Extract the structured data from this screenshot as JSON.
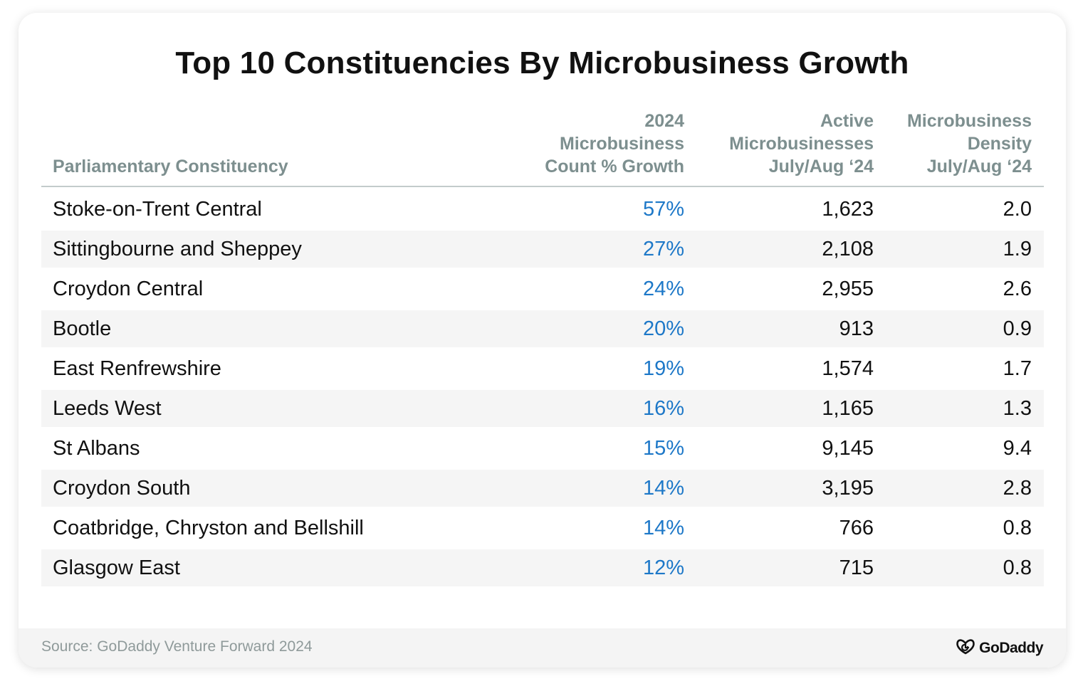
{
  "chart_data": {
    "type": "table",
    "title": "Top 10 Constituencies By Microbusiness Growth",
    "columns": [
      "Parliamentary Constituency",
      "2024 Microbusiness Count % Growth",
      "Active Microbusinesses July/Aug ‘24",
      "Microbusiness Density July/Aug ‘24"
    ],
    "header_lines": {
      "constituency": [
        "Parliamentary Constituency"
      ],
      "growth": [
        "2024",
        "Microbusiness",
        "Count % Growth"
      ],
      "active": [
        "Active",
        "Microbusinesses",
        "July/Aug ‘24"
      ],
      "density": [
        "Microbusiness",
        "Density",
        "July/Aug ‘24"
      ]
    },
    "rows": [
      {
        "constituency": "Stoke-on-Trent Central",
        "growth": "57%",
        "active": "1,623",
        "density": "2.0"
      },
      {
        "constituency": "Sittingbourne and Sheppey",
        "growth": "27%",
        "active": "2,108",
        "density": "1.9"
      },
      {
        "constituency": "Croydon Central",
        "growth": "24%",
        "active": "2,955",
        "density": "2.6"
      },
      {
        "constituency": "Bootle",
        "growth": "20%",
        "active": "913",
        "density": "0.9"
      },
      {
        "constituency": "East Renfrewshire",
        "growth": "19%",
        "active": "1,574",
        "density": "1.7"
      },
      {
        "constituency": "Leeds West",
        "growth": "16%",
        "active": "1,165",
        "density": "1.3"
      },
      {
        "constituency": "St Albans",
        "growth": "15%",
        "active": "9,145",
        "density": "9.4"
      },
      {
        "constituency": "Croydon South",
        "growth": "14%",
        "active": "3,195",
        "density": "2.8"
      },
      {
        "constituency": "Coatbridge, Chryston and Bellshill",
        "growth": "14%",
        "active": "766",
        "density": "0.8"
      },
      {
        "constituency": "Glasgow East",
        "growth": "12%",
        "active": "715",
        "density": "0.8"
      }
    ]
  },
  "footer": {
    "source": "Source: GoDaddy Venture Forward 2024",
    "logo_text": "GoDaddy",
    "logo_icon": "godaddy-logo-icon"
  },
  "colors": {
    "title": "#111111",
    "header_text": "#7d8f8f",
    "growth_text": "#1d78c8",
    "row_stripe": "#f5f5f5",
    "footer_bg": "#f4f4f4"
  }
}
